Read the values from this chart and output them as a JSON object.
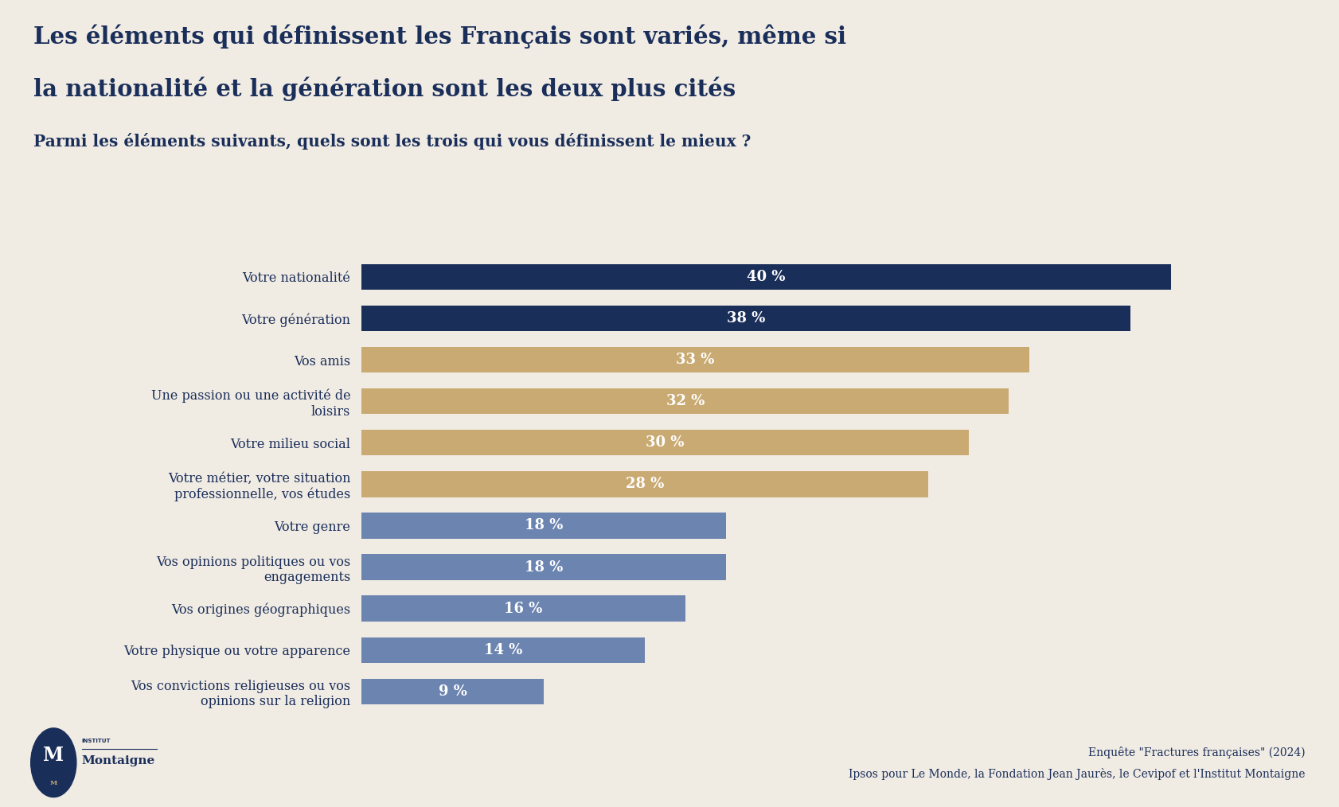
{
  "title_line1": "Les éléments qui définissent les Français sont variés, même si",
  "title_line2": "la nationalité et la génération sont les deux plus cités",
  "subtitle": "Parmi les éléments suivants, quels sont les trois qui vous définissent le mieux ?",
  "categories": [
    "Votre nationalité",
    "Votre génération",
    "Vos amis",
    "Une passion ou une activité de\nloisirs",
    "Votre milieu social",
    "Votre métier, votre situation\nprofessionnelle, vos études",
    "Votre genre",
    "Vos opinions politiques ou vos\nengagements",
    "Vos origines géographiques",
    "Votre physique ou votre apparence",
    "Vos convictions religieuses ou vos\nopinions sur la religion"
  ],
  "values": [
    40,
    38,
    33,
    32,
    30,
    28,
    18,
    18,
    16,
    14,
    9
  ],
  "colors": [
    "#1a2e5a",
    "#1a2e5a",
    "#c9aa72",
    "#c9aa72",
    "#c9aa72",
    "#c9aa72",
    "#6b84b0",
    "#6b84b0",
    "#6b84b0",
    "#6b84b0",
    "#6b84b0"
  ],
  "background_color": "#f0ebe3",
  "title_color": "#1a2e5a",
  "source_line1": "Enquête \"Fractures françaises\" (2024)",
  "source_line2": "Ipsos pour Le Monde, la Fondation Jean Jaurès, le Cevipof et l'Institut Montaigne",
  "xlim": [
    0,
    45
  ]
}
